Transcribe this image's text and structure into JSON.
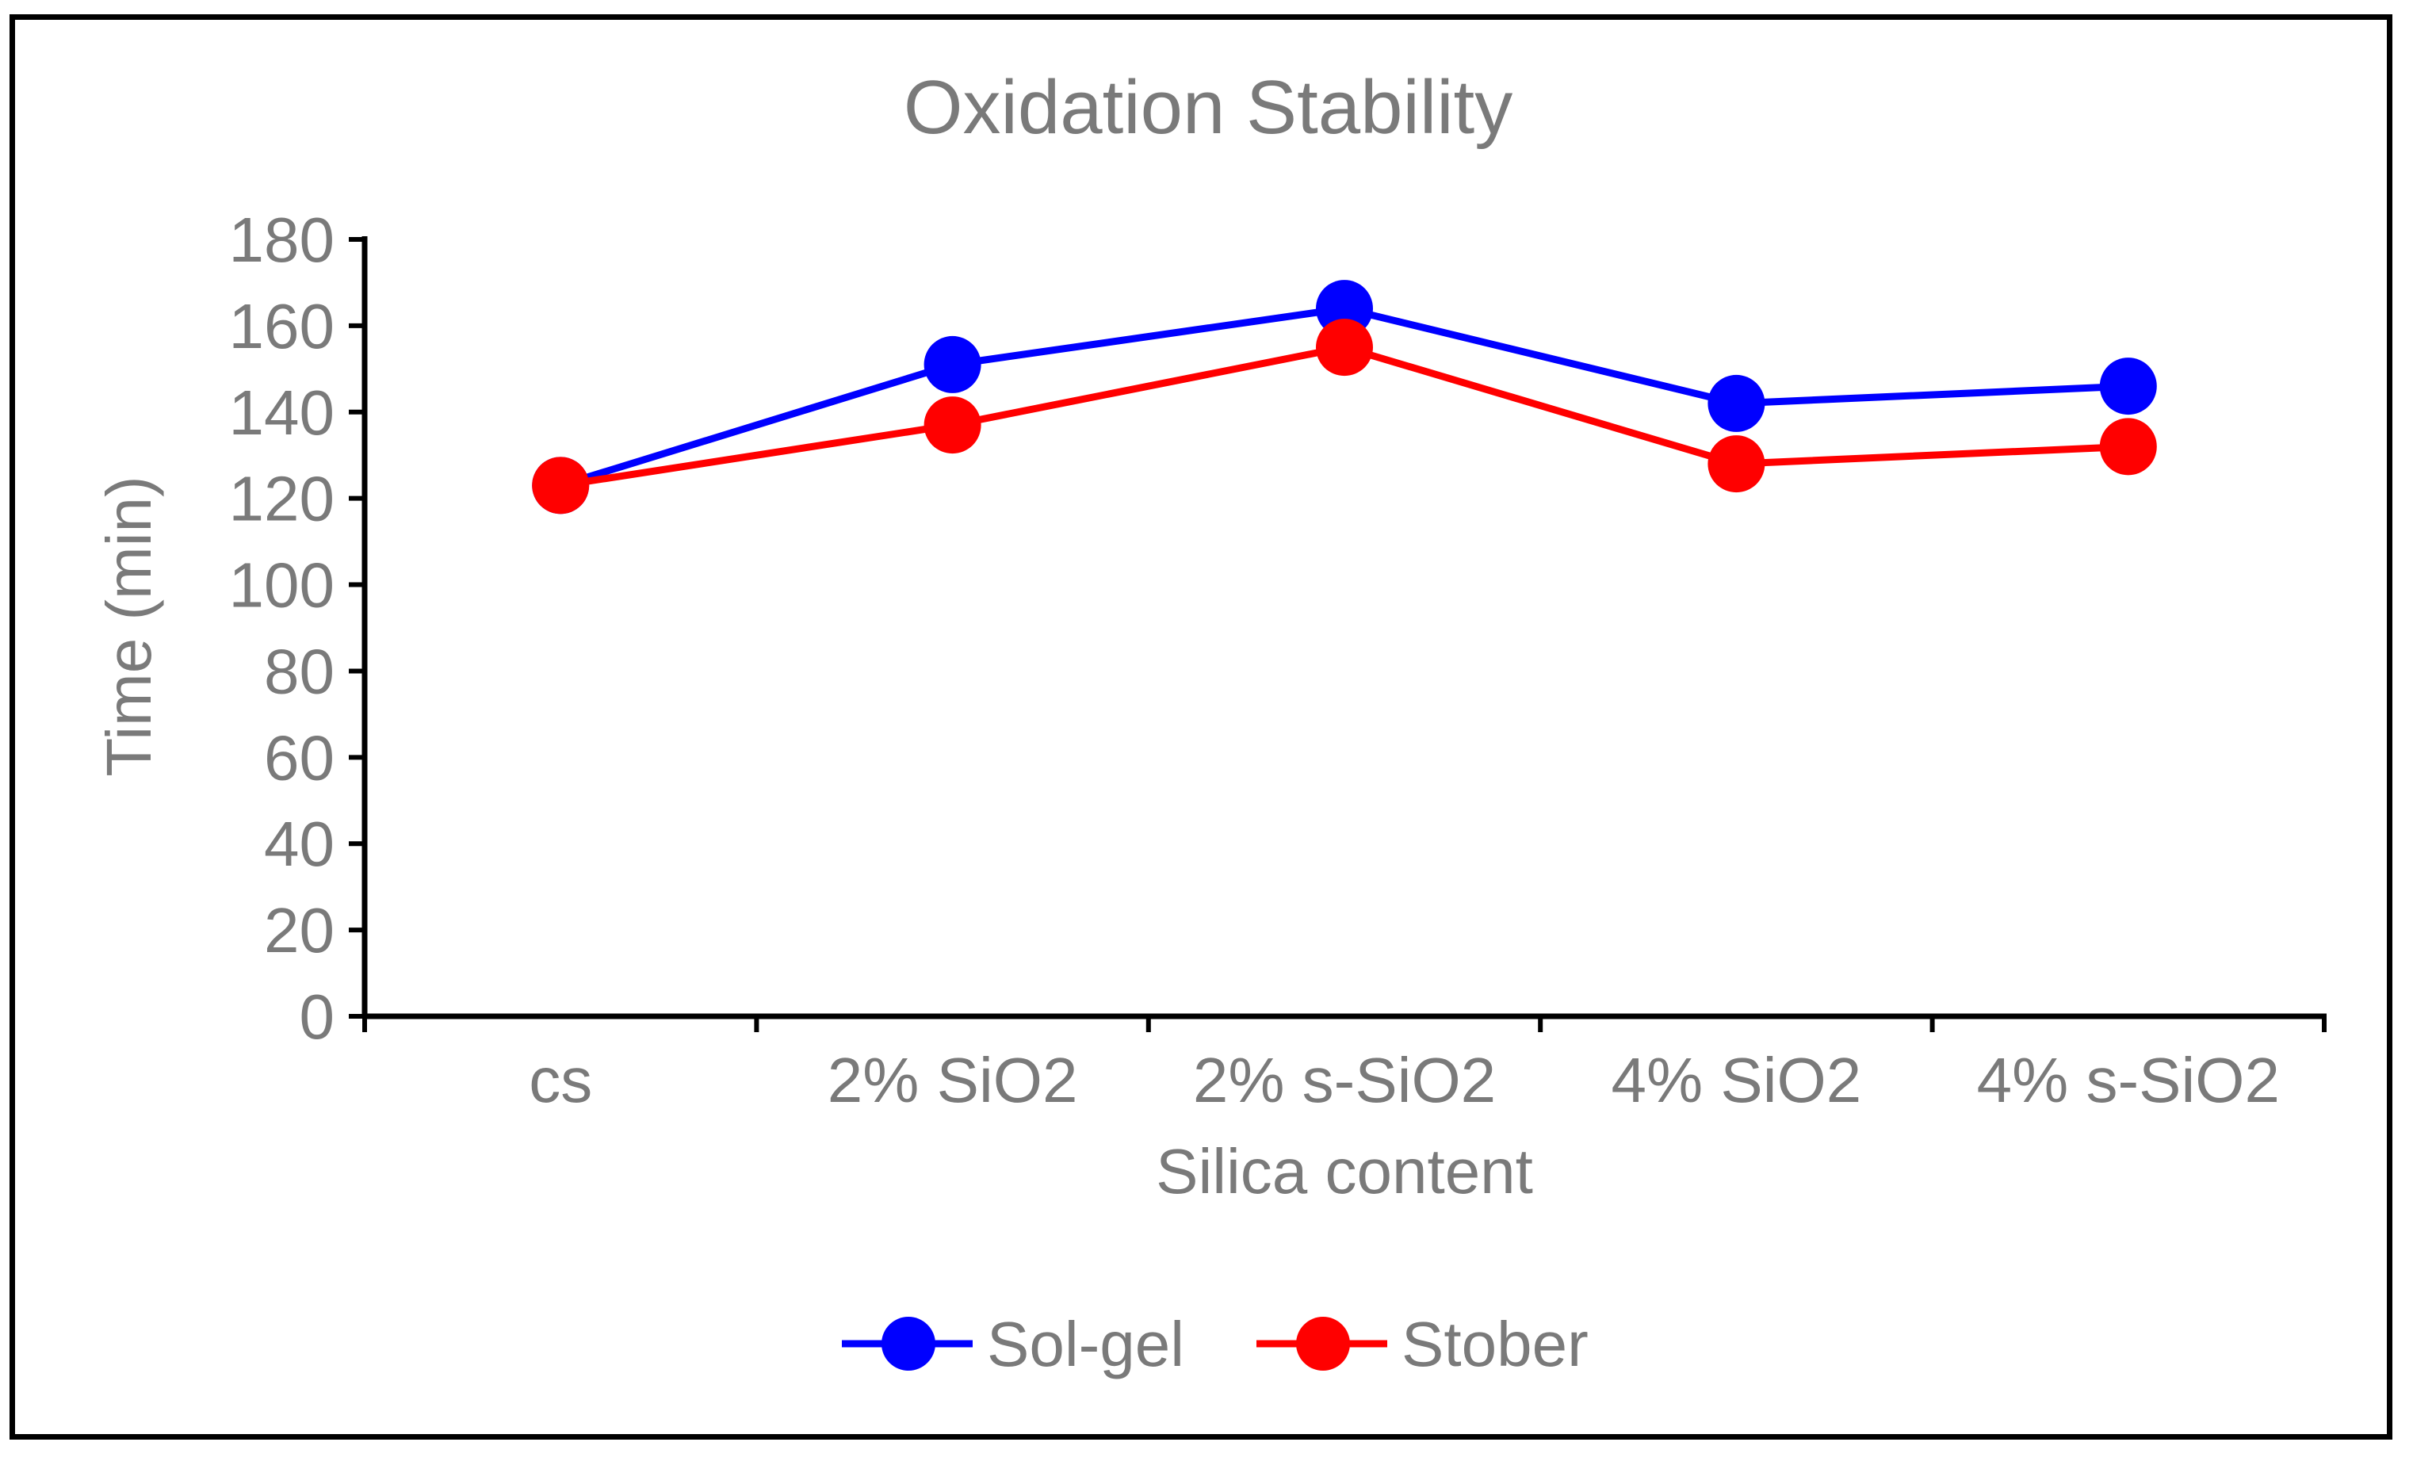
{
  "chart_data": {
    "type": "line",
    "title": "Oxidation Stability",
    "xlabel": "Silica content",
    "ylabel": "Time (min)",
    "categories": [
      "cs",
      "2% SiO2",
      "2% s-SiO2",
      "4% SiO2",
      "4% s-SiO2"
    ],
    "ylim": [
      0,
      180
    ],
    "yticks": [
      0,
      20,
      40,
      60,
      80,
      100,
      120,
      140,
      160,
      180
    ],
    "grid": false,
    "legend_position": "bottom",
    "series": [
      {
        "name": "Sol-gel",
        "color": "#0000ff",
        "values": [
          123,
          151,
          164,
          142,
          146
        ],
        "error": [
          3,
          3,
          3,
          3,
          3
        ]
      },
      {
        "name": "Stober",
        "color": "#ff0000",
        "values": [
          123,
          137,
          155,
          128,
          132
        ],
        "error": [
          3,
          3,
          3,
          3,
          3
        ]
      }
    ]
  }
}
